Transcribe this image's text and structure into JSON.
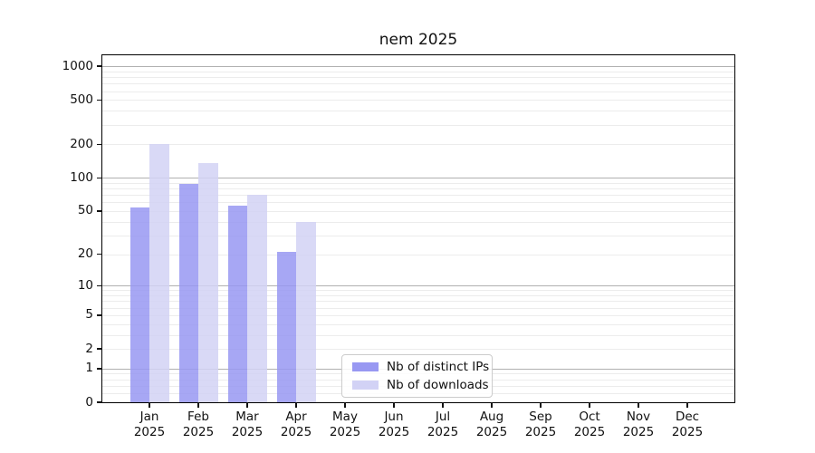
{
  "figure": {
    "title": "nem 2025"
  },
  "chart_data": {
    "type": "bar",
    "title": "nem 2025",
    "categories": [
      "Jan",
      "Feb",
      "Mar",
      "Apr",
      "May",
      "Jun",
      "Jul",
      "Aug",
      "Sep",
      "Oct",
      "Nov",
      "Dec"
    ],
    "year_label": "2025",
    "series": [
      {
        "name": "Nb of distinct IPs",
        "color": "#9898f2",
        "values": [
          54,
          88,
          56,
          21,
          0,
          0,
          0,
          0,
          0,
          0,
          0,
          0
        ]
      },
      {
        "name": "Nb of downloads",
        "color": "#d2d2f5",
        "values": [
          200,
          135,
          70,
          40,
          0,
          0,
          0,
          0,
          0,
          0,
          0,
          0
        ]
      }
    ],
    "xlabel": "",
    "ylabel": "",
    "yscale": "log1p",
    "ylim": [
      0,
      1256
    ],
    "y_ticks": [
      0,
      1,
      2,
      5,
      10,
      20,
      50,
      100,
      200,
      500,
      1000
    ],
    "grid": true,
    "major_grid_values": [
      1,
      10,
      100,
      1000
    ],
    "legend_position": "lower-center"
  },
  "palette": {
    "background": "#ffffff",
    "spine": "#000000",
    "major_grid": "#b0b0b0",
    "minor_grid": "#ececec",
    "text": "#111111"
  }
}
